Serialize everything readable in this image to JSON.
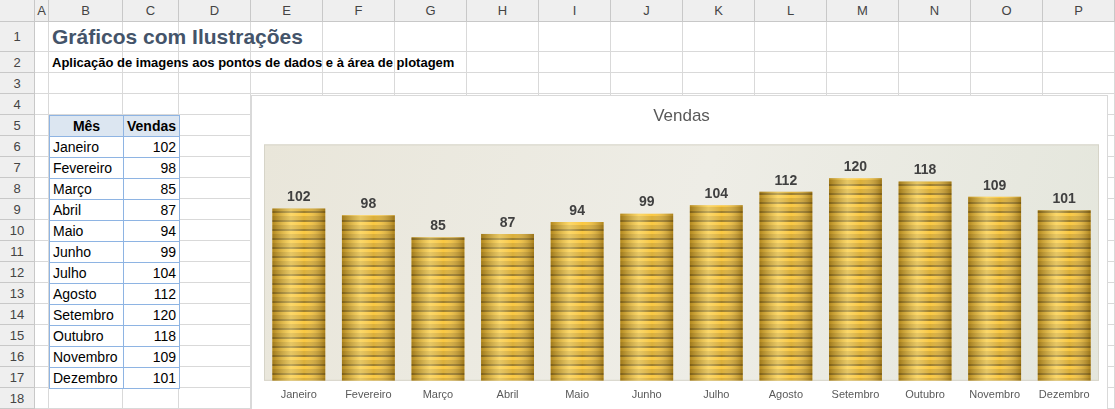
{
  "sheet": {
    "columns": [
      "A",
      "B",
      "C",
      "D",
      "E",
      "F",
      "G",
      "H",
      "I",
      "J",
      "K",
      "L",
      "M",
      "N",
      "O",
      "P"
    ],
    "rows": [
      1,
      2,
      3,
      4,
      5,
      6,
      7,
      8,
      9,
      10,
      11,
      12,
      13,
      14,
      15,
      16,
      17,
      18
    ]
  },
  "header": {
    "title": "Gráficos com Ilustrações",
    "subtitle": "Aplicação de imagens aos pontos de dados e à área de plotagem"
  },
  "table": {
    "columns": [
      "Mês",
      "Vendas"
    ],
    "rows": [
      [
        "Janeiro",
        102
      ],
      [
        "Fevereiro",
        98
      ],
      [
        "Março",
        85
      ],
      [
        "Abril",
        87
      ],
      [
        "Maio",
        94
      ],
      [
        "Junho",
        99
      ],
      [
        "Julho",
        104
      ],
      [
        "Agosto",
        112
      ],
      [
        "Setembro",
        120
      ],
      [
        "Outubro",
        118
      ],
      [
        "Novembro",
        109
      ],
      [
        "Dezembro",
        101
      ]
    ]
  },
  "chart_data": {
    "type": "bar",
    "title": "Vendas",
    "categories": [
      "Janeiro",
      "Fevereiro",
      "Março",
      "Abril",
      "Maio",
      "Junho",
      "Julho",
      "Agosto",
      "Setembro",
      "Outubro",
      "Novembro",
      "Dezembro"
    ],
    "values": [
      102,
      98,
      85,
      87,
      94,
      99,
      104,
      112,
      120,
      118,
      109,
      101
    ],
    "color": "#d9ab2f",
    "ylim": [
      0,
      140
    ],
    "grid": false,
    "data_labels": true,
    "tick_labels": "x"
  }
}
